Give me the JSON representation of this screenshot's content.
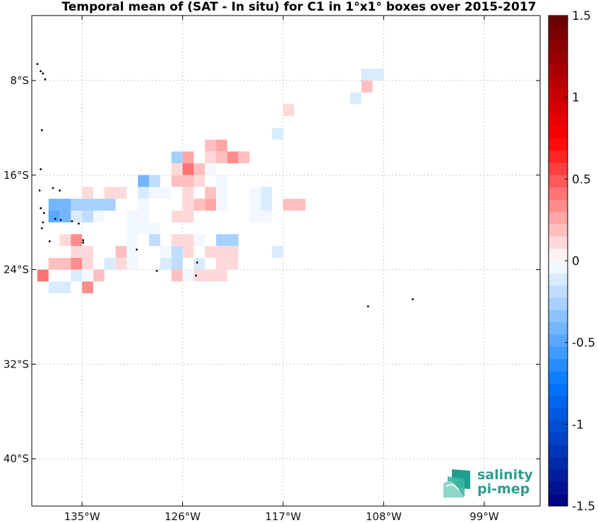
{
  "title": "Temporal mean of (SAT - In situ) for C1 in 1°x1° boxes over 2015-2017",
  "chart_data": {
    "type": "heatmap",
    "xlim": [
      -139.5,
      -94
    ],
    "ylim": [
      -44,
      -2.5
    ],
    "xticks": [
      {
        "value": -135,
        "label": "135°W"
      },
      {
        "value": -126,
        "label": "126°W"
      },
      {
        "value": -117,
        "label": "117°W"
      },
      {
        "value": -108,
        "label": "108°W"
      },
      {
        "value": -99,
        "label": "99°W"
      }
    ],
    "yticks": [
      {
        "value": -8,
        "label": "8°S"
      },
      {
        "value": -16,
        "label": "16°S"
      },
      {
        "value": -24,
        "label": "24°S"
      },
      {
        "value": -32,
        "label": "32°S"
      },
      {
        "value": -40,
        "label": "40°S"
      }
    ],
    "grid": true,
    "colorbar": {
      "range": [
        -1.5,
        1.5
      ],
      "levels": 40,
      "ticks": [
        {
          "value": 1.5,
          "label": "1.5"
        },
        {
          "value": 1,
          "label": "1"
        },
        {
          "value": 0.5,
          "label": "0.5"
        },
        {
          "value": 0,
          "label": "0"
        },
        {
          "value": -0.5,
          "label": "-0.5"
        },
        {
          "value": -1,
          "label": "-1"
        },
        {
          "value": -1.5,
          "label": "-1.5"
        }
      ]
    },
    "cells": [
      {
        "lon": -109.5,
        "lat": -7.5,
        "v": -0.08
      },
      {
        "lon": -108.5,
        "lat": -7.5,
        "v": -0.15
      },
      {
        "lon": -109.5,
        "lat": -8.5,
        "v": 0.22
      },
      {
        "lon": -110.5,
        "lat": -9.5,
        "v": -0.08
      },
      {
        "lon": -116.5,
        "lat": -10.5,
        "v": 0.14
      },
      {
        "lon": -117.5,
        "lat": -12.5,
        "v": -0.08
      },
      {
        "lon": -123.5,
        "lat": -13.5,
        "v": 0.2
      },
      {
        "lon": -122.5,
        "lat": -13.5,
        "v": 0.28
      },
      {
        "lon": -126.5,
        "lat": -14.5,
        "v": -0.3
      },
      {
        "lon": -125.5,
        "lat": -14.5,
        "v": 0.25
      },
      {
        "lon": -123.5,
        "lat": -14.5,
        "v": 0.08
      },
      {
        "lon": -122.5,
        "lat": -14.5,
        "v": 0.22
      },
      {
        "lon": -121.5,
        "lat": -14.5,
        "v": 0.3
      },
      {
        "lon": -120.5,
        "lat": -14.5,
        "v": 0.22
      },
      {
        "lon": -126.5,
        "lat": -15.5,
        "v": 0.12
      },
      {
        "lon": -125.5,
        "lat": -15.5,
        "v": 0.38
      },
      {
        "lon": -124.5,
        "lat": -15.5,
        "v": 0.15
      },
      {
        "lon": -123.5,
        "lat": -15.5,
        "v": -0.06
      },
      {
        "lon": -129.5,
        "lat": -16.5,
        "v": -0.4
      },
      {
        "lon": -128.5,
        "lat": -16.5,
        "v": -0.22
      },
      {
        "lon": -126.5,
        "lat": -16.5,
        "v": 0.22
      },
      {
        "lon": -125.5,
        "lat": -16.5,
        "v": 0.2
      },
      {
        "lon": -124.5,
        "lat": -16.5,
        "v": 0.1
      },
      {
        "lon": -122.5,
        "lat": -16.5,
        "v": -0.06
      },
      {
        "lon": -134.5,
        "lat": -17.5,
        "v": 0.1
      },
      {
        "lon": -132.5,
        "lat": -17.5,
        "v": 0.1
      },
      {
        "lon": -131.5,
        "lat": -17.5,
        "v": 0.1
      },
      {
        "lon": -129.5,
        "lat": -17.5,
        "v": -0.08
      },
      {
        "lon": -128.5,
        "lat": -17.5,
        "v": -0.06
      },
      {
        "lon": -127.5,
        "lat": -17.5,
        "v": -0.06
      },
      {
        "lon": -125.5,
        "lat": -17.5,
        "v": 0.1
      },
      {
        "lon": -123.5,
        "lat": -17.5,
        "v": 0.2
      },
      {
        "lon": -122.5,
        "lat": -17.5,
        "v": -0.06
      },
      {
        "lon": -119.5,
        "lat": -17.5,
        "v": -0.06
      },
      {
        "lon": -118.5,
        "lat": -17.5,
        "v": -0.15
      },
      {
        "lon": -137.5,
        "lat": -18.5,
        "v": -0.4
      },
      {
        "lon": -136.5,
        "lat": -18.5,
        "v": -0.4
      },
      {
        "lon": -135.5,
        "lat": -18.5,
        "v": -0.3
      },
      {
        "lon": -134.5,
        "lat": -18.5,
        "v": -0.3
      },
      {
        "lon": -133.5,
        "lat": -18.5,
        "v": -0.3
      },
      {
        "lon": -132.5,
        "lat": -18.5,
        "v": -0.3
      },
      {
        "lon": -129.5,
        "lat": -18.5,
        "v": -0.06
      },
      {
        "lon": -125.5,
        "lat": -18.5,
        "v": 0.12
      },
      {
        "lon": -124.5,
        "lat": -18.5,
        "v": 0.15
      },
      {
        "lon": -123.5,
        "lat": -18.5,
        "v": 0.25
      },
      {
        "lon": -122.5,
        "lat": -18.5,
        "v": -0.06
      },
      {
        "lon": -119.5,
        "lat": -18.5,
        "v": -0.06
      },
      {
        "lon": -118.5,
        "lat": -18.5,
        "v": -0.1
      },
      {
        "lon": -116.5,
        "lat": -18.5,
        "v": 0.2
      },
      {
        "lon": -115.5,
        "lat": -18.5,
        "v": 0.2
      },
      {
        "lon": -137.5,
        "lat": -19.5,
        "v": -0.5
      },
      {
        "lon": -136.5,
        "lat": -19.5,
        "v": -0.4
      },
      {
        "lon": -135.5,
        "lat": -19.5,
        "v": -0.1
      },
      {
        "lon": -134.5,
        "lat": -19.5,
        "v": -0.2
      },
      {
        "lon": -133.5,
        "lat": -19.5,
        "v": -0.06
      },
      {
        "lon": -130.5,
        "lat": -19.5,
        "v": -0.06
      },
      {
        "lon": -129.5,
        "lat": -19.5,
        "v": -0.06
      },
      {
        "lon": -126.5,
        "lat": -19.5,
        "v": 0.1
      },
      {
        "lon": -125.5,
        "lat": -19.5,
        "v": 0.12
      },
      {
        "lon": -119.5,
        "lat": -19.5,
        "v": -0.06
      },
      {
        "lon": -118.5,
        "lat": -19.5,
        "v": -0.06
      },
      {
        "lon": -130.5,
        "lat": -20.5,
        "v": -0.06
      },
      {
        "lon": -129.5,
        "lat": -20.5,
        "v": -0.06
      },
      {
        "lon": -128.5,
        "lat": -20.5,
        "v": -0.06
      },
      {
        "lon": -136.5,
        "lat": -21.5,
        "v": 0.1
      },
      {
        "lon": -135.5,
        "lat": -21.5,
        "v": 0.3
      },
      {
        "lon": -130.5,
        "lat": -21.5,
        "v": -0.06
      },
      {
        "lon": -128.5,
        "lat": -21.5,
        "v": -0.2
      },
      {
        "lon": -126.5,
        "lat": -21.5,
        "v": 0.1
      },
      {
        "lon": -125.5,
        "lat": -21.5,
        "v": 0.1
      },
      {
        "lon": -124.5,
        "lat": -21.5,
        "v": -0.06
      },
      {
        "lon": -122.5,
        "lat": -21.5,
        "v": -0.3
      },
      {
        "lon": -121.5,
        "lat": -21.5,
        "v": -0.3
      },
      {
        "lon": -135.5,
        "lat": -22.5,
        "v": 0.12
      },
      {
        "lon": -134.5,
        "lat": -22.5,
        "v": 0.12
      },
      {
        "lon": -131.5,
        "lat": -22.5,
        "v": 0.15
      },
      {
        "lon": -130.5,
        "lat": -22.5,
        "v": -0.06
      },
      {
        "lon": -127.5,
        "lat": -22.5,
        "v": -0.06
      },
      {
        "lon": -126.5,
        "lat": -22.5,
        "v": -0.2
      },
      {
        "lon": -125.5,
        "lat": -22.5,
        "v": 0.1
      },
      {
        "lon": -123.5,
        "lat": -22.5,
        "v": 0.1
      },
      {
        "lon": -122.5,
        "lat": -22.5,
        "v": 0.1
      },
      {
        "lon": -121.5,
        "lat": -22.5,
        "v": 0.1
      },
      {
        "lon": -117.5,
        "lat": -22.5,
        "v": -0.1
      },
      {
        "lon": -137.5,
        "lat": -23.5,
        "v": 0.15
      },
      {
        "lon": -136.5,
        "lat": -23.5,
        "v": 0.22
      },
      {
        "lon": -135.5,
        "lat": -23.5,
        "v": 0.35
      },
      {
        "lon": -134.5,
        "lat": -23.5,
        "v": 0.1
      },
      {
        "lon": -132.5,
        "lat": -23.5,
        "v": -0.1
      },
      {
        "lon": -131.5,
        "lat": -23.5,
        "v": 0.1
      },
      {
        "lon": -130.5,
        "lat": -23.5,
        "v": -0.06
      },
      {
        "lon": -127.5,
        "lat": -23.5,
        "v": -0.1
      },
      {
        "lon": -126.5,
        "lat": -23.5,
        "v": -0.2
      },
      {
        "lon": -124.5,
        "lat": -23.5,
        "v": -0.1
      },
      {
        "lon": -122.5,
        "lat": -23.5,
        "v": 0.12
      },
      {
        "lon": -121.5,
        "lat": -23.5,
        "v": 0.12
      },
      {
        "lon": -138.5,
        "lat": -24.5,
        "v": 0.4
      },
      {
        "lon": -135.5,
        "lat": -24.5,
        "v": -0.15
      },
      {
        "lon": -134.5,
        "lat": -24.5,
        "v": -0.06
      },
      {
        "lon": -133.5,
        "lat": -24.5,
        "v": 0.15
      },
      {
        "lon": -126.5,
        "lat": -24.5,
        "v": 0.22
      },
      {
        "lon": -125.5,
        "lat": -24.5,
        "v": -0.06
      },
      {
        "lon": -124.5,
        "lat": -24.5,
        "v": 0.1
      },
      {
        "lon": -123.5,
        "lat": -24.5,
        "v": 0.12
      },
      {
        "lon": -122.5,
        "lat": -24.5,
        "v": 0.12
      },
      {
        "lon": -137.5,
        "lat": -25.5,
        "v": -0.12
      },
      {
        "lon": -136.5,
        "lat": -25.5,
        "v": -0.12
      },
      {
        "lon": -134.5,
        "lat": -25.5,
        "v": 0.35
      }
    ],
    "islands": [
      {
        "lon": -139.0,
        "lat": -6.6
      },
      {
        "lon": -138.7,
        "lat": -7.2
      },
      {
        "lon": -138.5,
        "lat": -7.4
      },
      {
        "lon": -138.3,
        "lat": -7.9
      },
      {
        "lon": -138.6,
        "lat": -12.2
      },
      {
        "lon": -138.7,
        "lat": -15.5
      },
      {
        "lon": -138.8,
        "lat": -17.3
      },
      {
        "lon": -137.6,
        "lat": -17.1
      },
      {
        "lon": -137.0,
        "lat": -17.3
      },
      {
        "lon": -138.7,
        "lat": -18.8
      },
      {
        "lon": -138.4,
        "lat": -19.2
      },
      {
        "lon": -138.5,
        "lat": -20.0
      },
      {
        "lon": -138.6,
        "lat": -20.5
      },
      {
        "lon": -137.4,
        "lat": -19.7
      },
      {
        "lon": -136.9,
        "lat": -19.8
      },
      {
        "lon": -135.9,
        "lat": -19.9
      },
      {
        "lon": -135.3,
        "lat": -20.1
      },
      {
        "lon": -137.9,
        "lat": -21.6
      },
      {
        "lon": -134.9,
        "lat": -21.5
      },
      {
        "lon": -134.9,
        "lat": -21.7
      },
      {
        "lon": -130.1,
        "lat": -22.3
      },
      {
        "lon": -128.3,
        "lat": -24.1
      },
      {
        "lon": -124.8,
        "lat": -24.5
      },
      {
        "lon": -124.7,
        "lat": -23.4
      },
      {
        "lon": -109.4,
        "lat": -27.1
      },
      {
        "lon": -105.4,
        "lat": -26.5
      }
    ]
  },
  "logo": {
    "line1": "salinity",
    "line2": "pi-mep"
  }
}
